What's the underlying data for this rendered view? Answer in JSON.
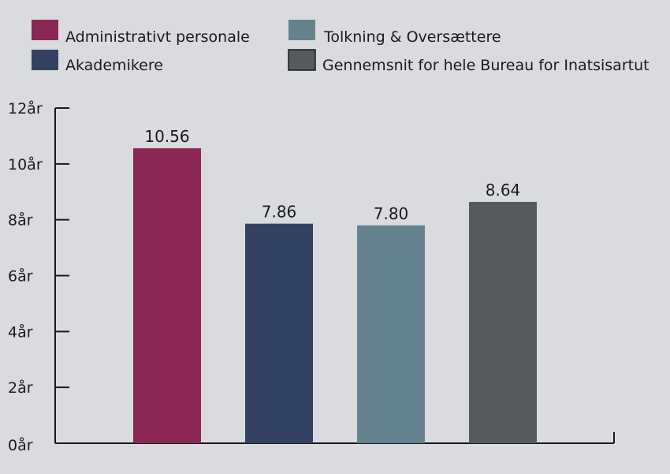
{
  "chart_data": {
    "type": "bar",
    "categories": [
      "Administrativt personale",
      "Akademikere",
      "Tolkning & Oversættere",
      "Gennemsnit for hele Bureau for Inatsisartut"
    ],
    "values": [
      10.56,
      7.86,
      7.8,
      8.64
    ],
    "value_labels": [
      "10.56",
      "7.86",
      "7.80",
      "8.64"
    ],
    "colors": [
      "#8b2754",
      "#334262",
      "#65838f",
      "#565a5d"
    ],
    "ylim": [
      0,
      12
    ],
    "yticks": [
      0,
      2,
      4,
      6,
      8,
      10,
      12
    ],
    "ytick_labels": [
      "0år",
      "2år",
      "4år",
      "6år",
      "8år",
      "10år",
      "12år"
    ],
    "legend": [
      {
        "label": "Administrativt personale",
        "color": "#8b2754"
      },
      {
        "label": "Tolkning & Oversættere",
        "color": "#65838f"
      },
      {
        "label": "Akademikere",
        "color": "#334262"
      },
      {
        "label": "Gennemsnit for hele Bureau for Inatsisartut",
        "color": "#565a5d"
      }
    ],
    "legend_position": "top",
    "grid": false
  }
}
